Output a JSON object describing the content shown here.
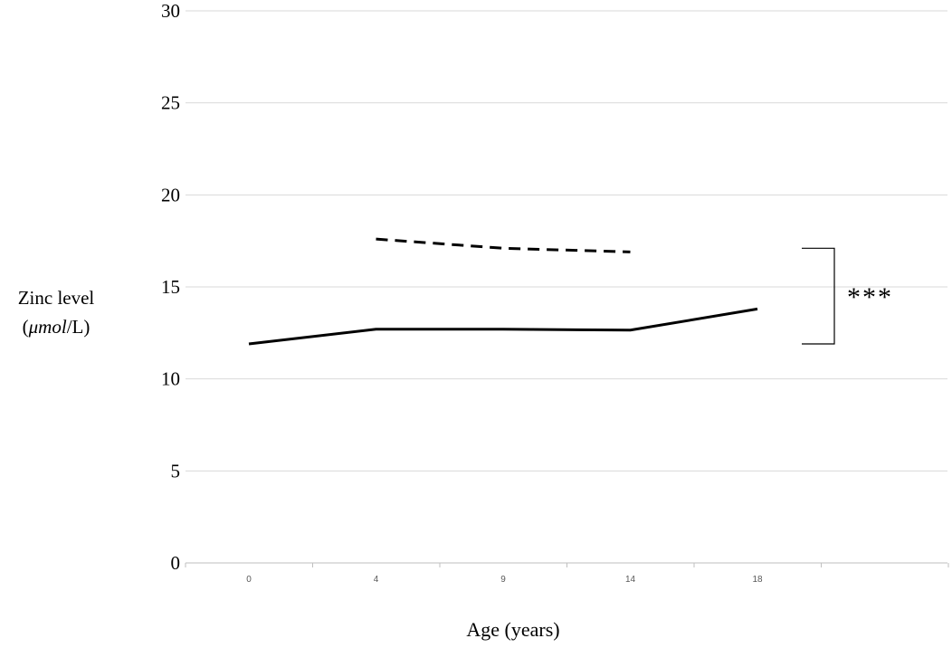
{
  "chart_data": {
    "type": "line",
    "categories": [
      "0",
      "4",
      "9",
      "14",
      "18"
    ],
    "series": [
      {
        "style": "solid",
        "values": [
          11.9,
          12.7,
          12.7,
          12.65,
          13.8
        ]
      },
      {
        "style": "dashed",
        "values": [
          null,
          17.6,
          17.1,
          16.9,
          null
        ]
      }
    ],
    "ylim": [
      0,
      30
    ],
    "yticks": [
      0,
      5,
      10,
      15,
      20,
      25,
      30
    ],
    "grid": true,
    "xlabel": "Age (years)",
    "ylabel_line1": "Zinc level",
    "ylabel_unit_prefix": "(",
    "ylabel_unit_main": "μmol",
    "ylabel_unit_suffix": "/L)",
    "annotation": "***",
    "colors": {
      "lines": "#000000",
      "grid": "#d9d9d9",
      "axis": "#bfbfbf"
    }
  }
}
